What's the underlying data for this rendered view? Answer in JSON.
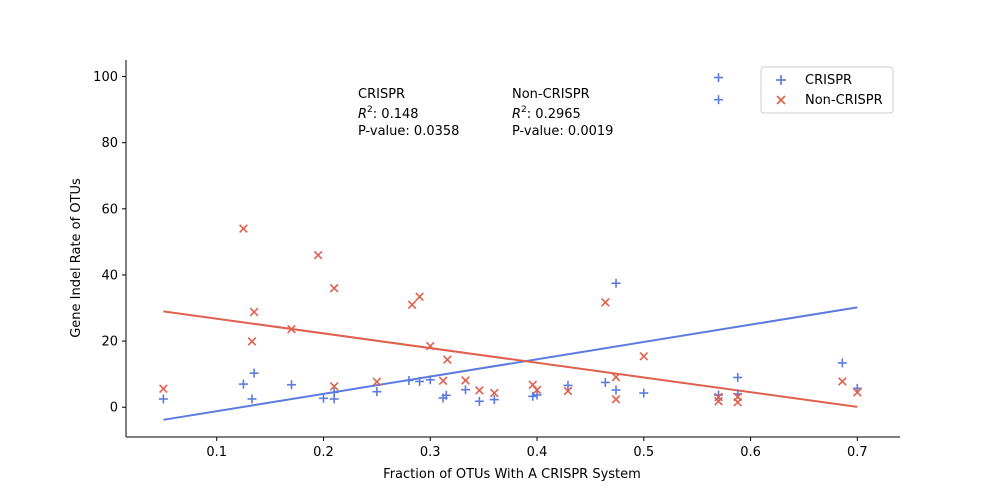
{
  "chart_data": {
    "type": "scatter",
    "xlabel": "Fraction of OTUs With A CRISPR System",
    "ylabel": "Gene Indel Rate of OTUs",
    "xlim": [
      0.015,
      0.74
    ],
    "ylim": [
      -9,
      105
    ],
    "xticks": [
      0.1,
      0.2,
      0.3,
      0.4,
      0.5,
      0.6,
      0.7
    ],
    "yticks": [
      0,
      20,
      40,
      60,
      80,
      100
    ],
    "grid": false,
    "legend_position": "upper right",
    "series": [
      {
        "name": "CRISPR",
        "marker": "plus",
        "color": "#5b7be0",
        "points": [
          [
            0.05,
            2.5
          ],
          [
            0.125,
            7.0
          ],
          [
            0.133,
            2.5
          ],
          [
            0.135,
            10.3
          ],
          [
            0.17,
            6.8
          ],
          [
            0.2,
            2.7
          ],
          [
            0.21,
            2.5
          ],
          [
            0.21,
            4.5
          ],
          [
            0.25,
            4.7
          ],
          [
            0.28,
            8.1
          ],
          [
            0.29,
            7.8
          ],
          [
            0.3,
            8.3
          ],
          [
            0.312,
            2.8
          ],
          [
            0.315,
            3.6
          ],
          [
            0.333,
            5.3
          ],
          [
            0.346,
            1.8
          ],
          [
            0.36,
            2.3
          ],
          [
            0.396,
            3.3
          ],
          [
            0.4,
            3.7
          ],
          [
            0.429,
            6.6
          ],
          [
            0.464,
            7.5
          ],
          [
            0.474,
            37.5
          ],
          [
            0.474,
            5.2
          ],
          [
            0.5,
            4.3
          ],
          [
            0.57,
            3.7
          ],
          [
            0.588,
            9.0
          ],
          [
            0.588,
            4.0
          ],
          [
            0.686,
            13.4
          ],
          [
            0.7,
            5.7
          ],
          [
            0.57,
            99.7
          ],
          [
            0.57,
            93.0
          ]
        ],
        "fit": {
          "x": [
            0.05,
            0.7
          ],
          "y": [
            -3.8,
            30.2
          ]
        },
        "stats": {
          "label": "CRISPR",
          "r2": "0.148",
          "pvalue": "0.0358"
        }
      },
      {
        "name": "Non-CRISPR",
        "marker": "x",
        "color": "#e0604d",
        "points": [
          [
            0.05,
            5.6
          ],
          [
            0.125,
            54.0
          ],
          [
            0.133,
            19.9
          ],
          [
            0.135,
            28.8
          ],
          [
            0.17,
            23.6
          ],
          [
            0.195,
            46.0
          ],
          [
            0.21,
            36.0
          ],
          [
            0.21,
            6.3
          ],
          [
            0.25,
            7.7
          ],
          [
            0.283,
            31.0
          ],
          [
            0.29,
            33.4
          ],
          [
            0.3,
            18.5
          ],
          [
            0.312,
            8.0
          ],
          [
            0.316,
            14.4
          ],
          [
            0.333,
            8.1
          ],
          [
            0.346,
            5.1
          ],
          [
            0.36,
            4.3
          ],
          [
            0.396,
            6.8
          ],
          [
            0.4,
            5.2
          ],
          [
            0.429,
            4.9
          ],
          [
            0.464,
            31.7
          ],
          [
            0.474,
            9.1
          ],
          [
            0.474,
            2.4
          ],
          [
            0.5,
            15.4
          ],
          [
            0.57,
            1.8
          ],
          [
            0.57,
            3.1
          ],
          [
            0.588,
            3.1
          ],
          [
            0.588,
            1.5
          ],
          [
            0.686,
            7.8
          ],
          [
            0.7,
            4.5
          ]
        ],
        "fit": {
          "x": [
            0.05,
            0.7
          ],
          "y": [
            29.0,
            0.1
          ]
        },
        "stats": {
          "label": "Non-CRISPR",
          "r2": "0.2965",
          "pvalue": "0.0019"
        }
      }
    ]
  },
  "annotations": {
    "crispr": {
      "title": "CRISPR",
      "r2_value": ": 0.148",
      "pvalue": "P-value: 0.0358"
    },
    "noncrispr": {
      "title": "Non-CRISPR",
      "r2_value": ": 0.2965",
      "pvalue": "P-value: 0.0019"
    },
    "r2_symbol": "R",
    "r2_exp": "2"
  },
  "legend": {
    "items": [
      "CRISPR",
      "Non-CRISPR"
    ]
  }
}
